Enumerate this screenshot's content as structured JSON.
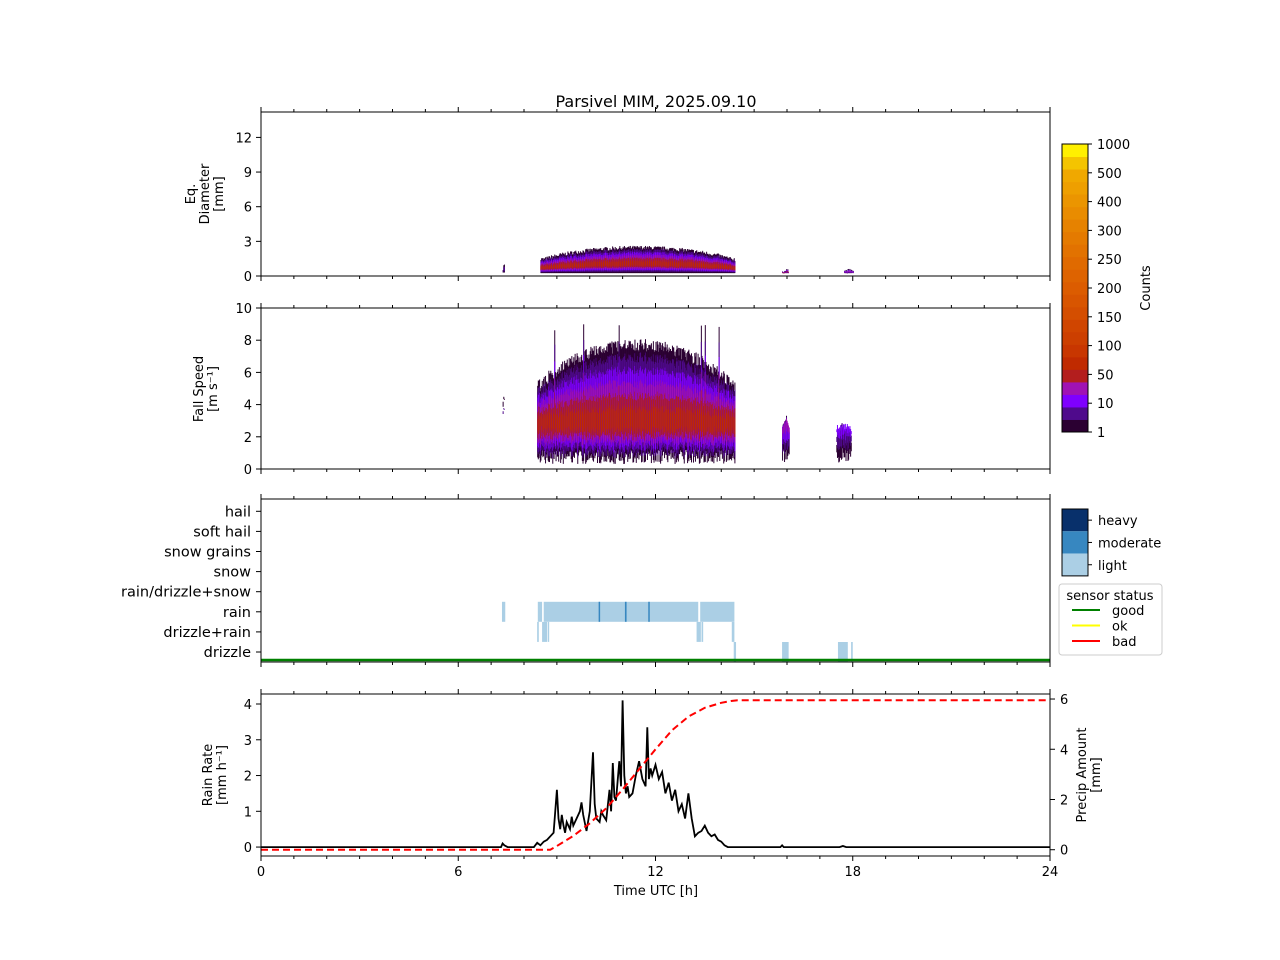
{
  "chart_data": [
    {
      "id": "diameter",
      "type": "heatmap",
      "title": "Parsivel MIM, 2025.09.10",
      "xlabel": "",
      "ylabel": [
        "Eq.",
        "Diameter",
        "[mm]"
      ],
      "xlim": [
        0,
        24
      ],
      "ylim": [
        0,
        14.2
      ],
      "yticks": [
        0,
        3,
        6,
        9,
        12
      ],
      "xticks": [
        0,
        6,
        12,
        18,
        24
      ],
      "description": "Drop size distribution counts over time",
      "events": [
        {
          "t_start": 7.35,
          "t_end": 7.4,
          "d_min": 0.3,
          "d_max": 1.2,
          "max_level": 1
        },
        {
          "t_start": 8.5,
          "t_end": 14.4,
          "d_min": 0.25,
          "d_max": 3.0,
          "max_level": 5
        },
        {
          "t_start": 15.85,
          "t_end": 16.05,
          "d_min": 0.25,
          "d_max": 0.5,
          "max_level": 4
        },
        {
          "t_start": 17.7,
          "t_end": 18.0,
          "d_min": 0.25,
          "d_max": 0.5,
          "max_level": 3
        }
      ]
    },
    {
      "id": "fallspeed",
      "type": "heatmap",
      "xlabel": "",
      "ylabel": [
        "Fall Speed",
        "[m s⁻¹]"
      ],
      "xlim": [
        0,
        24
      ],
      "ylim": [
        0,
        10
      ],
      "yticks": [
        0,
        2,
        4,
        6,
        8,
        10
      ],
      "xticks": [
        0,
        6,
        12,
        18,
        24
      ],
      "events": [
        {
          "t_start": 7.35,
          "t_end": 7.4,
          "v_min": 3.5,
          "v_max": 5.0,
          "max_level": 1
        },
        {
          "t_start": 8.4,
          "t_end": 14.4,
          "v_min": 0.3,
          "v_max": 9.0,
          "max_level": 5
        },
        {
          "t_start": 15.85,
          "t_end": 16.05,
          "v_min": 0.4,
          "v_max": 3.5,
          "max_level": 3
        },
        {
          "t_start": 17.5,
          "t_end": 17.95,
          "v_min": 0.4,
          "v_max": 3.0,
          "max_level": 2
        }
      ]
    },
    {
      "id": "ptype",
      "type": "table",
      "categories": [
        "drizzle",
        "drizzle+rain",
        "rain",
        "rain/drizzle+snow",
        "snow",
        "snow grains",
        "soft hail",
        "hail"
      ],
      "xlim": [
        0,
        24
      ],
      "xticks": [
        0,
        6,
        12,
        18,
        24
      ],
      "intensity_legend": [
        "heavy",
        "moderate",
        "light"
      ],
      "intensity_colors": {
        "light": "#abcfe5",
        "moderate": "#3787c0",
        "heavy": "#08306b"
      },
      "blocks": [
        {
          "category": "rain",
          "t_start": 7.33,
          "t_end": 7.43,
          "intensity": "light"
        },
        {
          "category": "rain",
          "t_start": 8.42,
          "t_end": 8.55,
          "intensity": "light"
        },
        {
          "category": "rain",
          "t_start": 8.6,
          "t_end": 13.3,
          "intensity": "light"
        },
        {
          "category": "rain",
          "t_start": 13.36,
          "t_end": 14.4,
          "intensity": "light"
        },
        {
          "category": "rain",
          "t_start": 10.27,
          "t_end": 10.31,
          "intensity": "moderate"
        },
        {
          "category": "rain",
          "t_start": 11.07,
          "t_end": 11.12,
          "intensity": "moderate"
        },
        {
          "category": "rain",
          "t_start": 11.78,
          "t_end": 11.82,
          "intensity": "moderate"
        },
        {
          "category": "drizzle+rain",
          "t_start": 8.4,
          "t_end": 8.45,
          "intensity": "light"
        },
        {
          "category": "drizzle+rain",
          "t_start": 8.55,
          "t_end": 8.7,
          "intensity": "light"
        },
        {
          "category": "drizzle+rain",
          "t_start": 8.72,
          "t_end": 8.76,
          "intensity": "light"
        },
        {
          "category": "drizzle+rain",
          "t_start": 13.25,
          "t_end": 13.38,
          "intensity": "light"
        },
        {
          "category": "drizzle+rain",
          "t_start": 13.4,
          "t_end": 13.45,
          "intensity": "light"
        },
        {
          "category": "drizzle+rain",
          "t_start": 14.32,
          "t_end": 14.4,
          "intensity": "light"
        },
        {
          "category": "drizzle",
          "t_start": 14.38,
          "t_end": 14.45,
          "intensity": "light"
        },
        {
          "category": "drizzle",
          "t_start": 15.85,
          "t_end": 16.05,
          "intensity": "light"
        },
        {
          "category": "drizzle",
          "t_start": 17.55,
          "t_end": 17.85,
          "intensity": "light"
        },
        {
          "category": "drizzle",
          "t_start": 17.95,
          "t_end": 18.0,
          "intensity": "light"
        }
      ],
      "sensor_status_legend": {
        "title": "sensor status",
        "entries": [
          {
            "label": "good",
            "color": "#008000"
          },
          {
            "label": "ok",
            "color": "#ffff00"
          },
          {
            "label": "bad",
            "color": "#ff0000"
          }
        ]
      },
      "sensor_status_line": {
        "status": "good",
        "t_start": 0,
        "t_end": 24
      }
    },
    {
      "id": "rainrate",
      "type": "line",
      "xlabel": "Time UTC [h]",
      "ylabel": [
        "Rain Rate",
        "[mm h⁻¹]"
      ],
      "y2label": [
        "Precip Amount",
        "[mm]"
      ],
      "xlim": [
        0,
        24
      ],
      "ylim": [
        -0.25,
        4.28
      ],
      "y2lim": [
        -0.25,
        6.2
      ],
      "xticks": [
        0,
        6,
        12,
        18,
        24
      ],
      "yticks": [
        0,
        1,
        2,
        3,
        4
      ],
      "y2ticks": [
        0,
        2,
        4,
        6
      ],
      "series": [
        {
          "name": "Rain Rate",
          "axis": "left",
          "color": "#000000",
          "style": "solid",
          "x": [
            0,
            7.3,
            7.35,
            7.4,
            7.5,
            8.3,
            8.4,
            8.5,
            8.6,
            8.7,
            8.8,
            8.9,
            9.0,
            9.05,
            9.1,
            9.15,
            9.2,
            9.25,
            9.3,
            9.4,
            9.45,
            9.5,
            9.6,
            9.7,
            9.75,
            9.8,
            9.9,
            10.0,
            10.1,
            10.15,
            10.2,
            10.3,
            10.35,
            10.4,
            10.5,
            10.6,
            10.65,
            10.7,
            10.75,
            10.8,
            10.9,
            10.95,
            11.0,
            11.05,
            11.1,
            11.15,
            11.2,
            11.3,
            11.4,
            11.5,
            11.6,
            11.7,
            11.75,
            11.8,
            11.85,
            11.9,
            12.0,
            12.1,
            12.2,
            12.3,
            12.4,
            12.5,
            12.6,
            12.7,
            12.8,
            12.9,
            13.0,
            13.1,
            13.2,
            13.3,
            13.4,
            13.5,
            13.6,
            13.7,
            13.8,
            13.9,
            14.0,
            14.1,
            14.2,
            14.3,
            14.4,
            15.8,
            15.85,
            15.9,
            17.6,
            17.7,
            17.8,
            24
          ],
          "y": [
            0,
            0,
            0.1,
            0.05,
            0,
            0,
            0.12,
            0.05,
            0.15,
            0.2,
            0.3,
            0.4,
            1.6,
            0.8,
            0.5,
            0.9,
            0.6,
            0.4,
            0.7,
            0.5,
            0.85,
            0.6,
            0.8,
            1.0,
            1.25,
            0.9,
            0.45,
            1.0,
            2.65,
            1.2,
            0.8,
            0.7,
            1.0,
            0.9,
            0.75,
            1.6,
            1.0,
            2.35,
            1.4,
            1.3,
            2.4,
            1.7,
            4.1,
            2.0,
            1.5,
            1.7,
            1.4,
            1.5,
            2.0,
            2.4,
            1.9,
            1.7,
            3.35,
            1.9,
            2.2,
            2.0,
            2.3,
            1.9,
            2.1,
            1.5,
            1.8,
            1.3,
            1.6,
            1.0,
            1.2,
            0.8,
            1.5,
            0.8,
            0.3,
            0.4,
            0.45,
            0.6,
            0.4,
            0.3,
            0.35,
            0.2,
            0.15,
            0.05,
            0,
            0,
            0,
            0,
            0.05,
            0,
            0,
            0.03,
            0,
            0
          ]
        },
        {
          "name": "Precip Amount",
          "axis": "right",
          "color": "#ff0000",
          "style": "dashed",
          "x": [
            0,
            8.8,
            9.0,
            9.5,
            10.0,
            10.5,
            11.0,
            11.5,
            12.0,
            12.5,
            13.0,
            13.5,
            14.0,
            14.3,
            14.5,
            24
          ],
          "y": [
            0,
            0,
            0.15,
            0.55,
            1.05,
            1.65,
            2.4,
            3.2,
            4.0,
            4.75,
            5.3,
            5.65,
            5.85,
            5.92,
            5.95,
            5.95
          ]
        }
      ]
    }
  ],
  "colorbar": {
    "label": "Counts",
    "ticks": [
      "1",
      "10",
      "50",
      "100",
      "150",
      "200",
      "250",
      "300",
      "400",
      "500",
      "1000"
    ],
    "colors": [
      "#2b0032",
      "#4f0a8c",
      "#7f00ff",
      "#a012b4",
      "#b31e1e",
      "#c02a00",
      "#c83600",
      "#cc3f00",
      "#d04500",
      "#d44e00",
      "#d85500",
      "#dc5c00",
      "#de6300",
      "#e06a00",
      "#e27200",
      "#e47a00",
      "#e68200",
      "#e98c00",
      "#eb9500",
      "#ee9f00",
      "#f0a800",
      "#f4c400",
      "#fff000"
    ]
  },
  "title": "Parsivel MIM, 2025.09.10"
}
